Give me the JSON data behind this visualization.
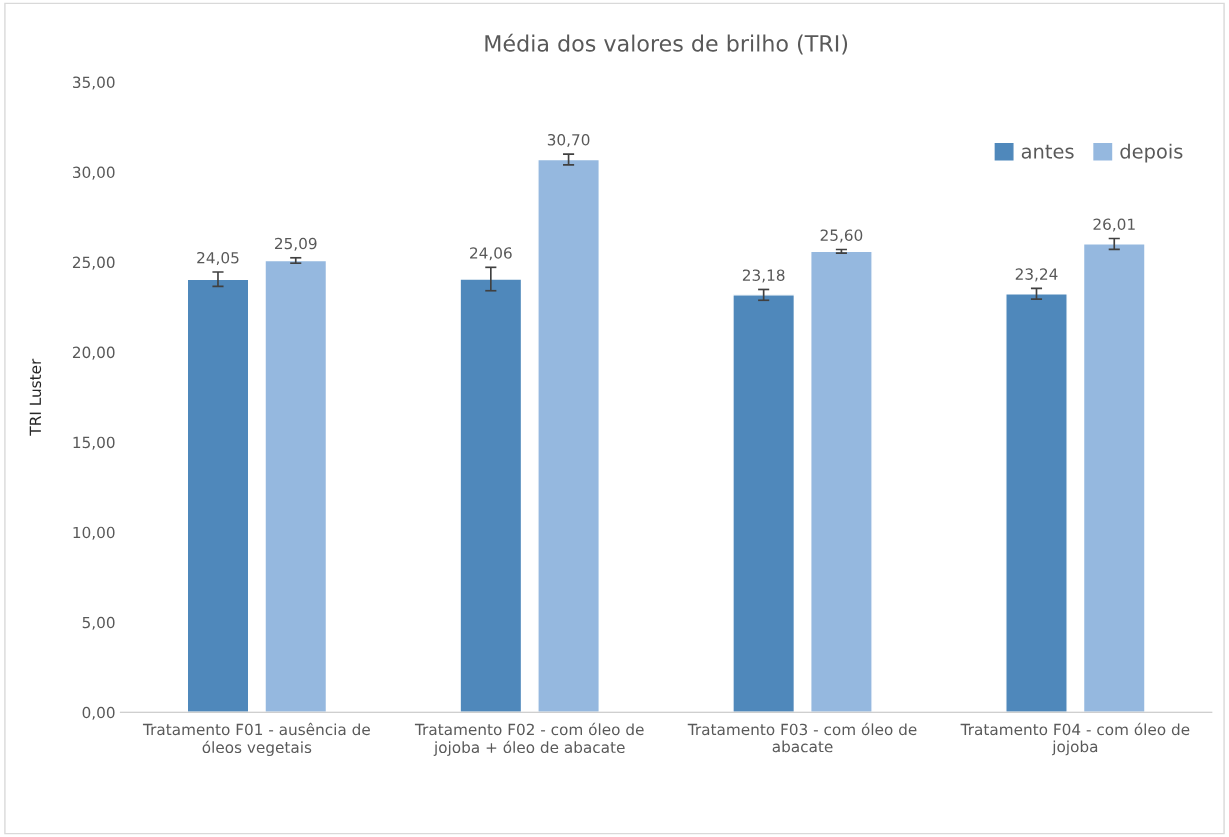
{
  "chart_data": {
    "type": "bar",
    "title": "Média dos valores de brilho (TRI)",
    "ylabel": "TRI Luster",
    "categories": [
      "Tratamento F01 - ausência de\nóleos vegetais",
      "Tratamento F02 - com óleo de\njojoba + óleo de abacate",
      "Tratamento F03 - com óleo de\nabacate",
      "Tratamento F04 - com óleo de\njojoba"
    ],
    "series": [
      {
        "name": "antes",
        "color": "#4f88bb",
        "values": [
          24.05,
          24.06,
          23.18,
          23.24
        ],
        "errors": [
          0.4,
          0.65,
          0.3,
          0.3
        ],
        "value_labels": [
          "24,05",
          "24,06",
          "23,18",
          "23,24"
        ]
      },
      {
        "name": "depois",
        "color": "#95b8df",
        "values": [
          25.09,
          30.7,
          25.6,
          26.01
        ],
        "errors": [
          0.15,
          0.3,
          0.1,
          0.3
        ],
        "value_labels": [
          "25,09",
          "30,70",
          "25,60",
          "26,01"
        ]
      }
    ],
    "ylim": [
      0,
      35
    ],
    "yticks": [
      {
        "value": 0,
        "label": "0,00"
      },
      {
        "value": 5,
        "label": "5,00"
      },
      {
        "value": 10,
        "label": "10,00"
      },
      {
        "value": 15,
        "label": "15,00"
      },
      {
        "value": 20,
        "label": "20,00"
      },
      {
        "value": 25,
        "label": "25,00"
      },
      {
        "value": 30,
        "label": "30,00"
      },
      {
        "value": 35,
        "label": "35,00"
      }
    ],
    "grid": false,
    "legend": "top right"
  }
}
